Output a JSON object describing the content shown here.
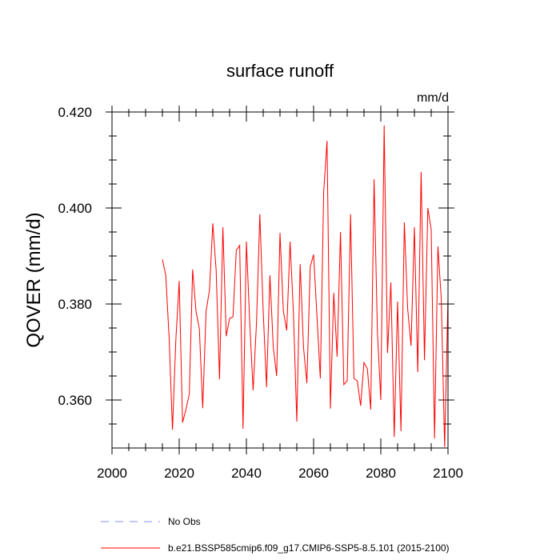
{
  "chart_data": {
    "type": "line",
    "title": "surface runoff",
    "units_label": "mm/d",
    "ylabel": "QOVER  (mm/d)",
    "xlabel": "",
    "xlim": [
      2000,
      2100
    ],
    "ylim": [
      0.35,
      0.42
    ],
    "x_ticks": [
      2000,
      2020,
      2040,
      2060,
      2080,
      2100
    ],
    "y_ticks": [
      0.36,
      0.38,
      0.4,
      0.42
    ],
    "x_tick_labels": [
      "2000",
      "2020",
      "2040",
      "2060",
      "2080",
      "2100"
    ],
    "y_tick_labels": [
      "0.360",
      "0.380",
      "0.400",
      "0.420"
    ],
    "grid": false,
    "legend_placement": "bottom",
    "series": [
      {
        "name": "No Obs",
        "style": "dashed",
        "color": "#8c8cf0",
        "x": [],
        "values": []
      },
      {
        "name": "b.e21.BSSP585cmip6.f09_g17.CMIP6-SSP5-8.5.101 (2015-2100)",
        "style": "solid",
        "color": "#ff0000",
        "x": [
          2015,
          2016,
          2017,
          2018,
          2019,
          2020,
          2021,
          2022,
          2023,
          2024,
          2025,
          2026,
          2027,
          2028,
          2029,
          2030,
          2031,
          2032,
          2033,
          2034,
          2035,
          2036,
          2037,
          2038,
          2039,
          2040,
          2041,
          2042,
          2043,
          2044,
          2045,
          2046,
          2047,
          2048,
          2049,
          2050,
          2051,
          2052,
          2053,
          2054,
          2055,
          2056,
          2057,
          2058,
          2059,
          2060,
          2061,
          2062,
          2063,
          2064,
          2065,
          2066,
          2067,
          2068,
          2069,
          2070,
          2071,
          2072,
          2073,
          2074,
          2075,
          2076,
          2077,
          2078,
          2079,
          2080,
          2081,
          2082,
          2083,
          2084,
          2085,
          2086,
          2087,
          2088,
          2089,
          2090,
          2091,
          2092,
          2093,
          2094,
          2095,
          2096,
          2097,
          2098,
          2099,
          2100
        ],
        "values": [
          0.3893,
          0.386,
          0.373,
          0.3538,
          0.3725,
          0.3848,
          0.3553,
          0.358,
          0.3612,
          0.3872,
          0.3785,
          0.3748,
          0.3583,
          0.3785,
          0.3828,
          0.3968,
          0.387,
          0.3643,
          0.396,
          0.3733,
          0.377,
          0.3773,
          0.3912,
          0.3922,
          0.354,
          0.393,
          0.376,
          0.362,
          0.376,
          0.3987,
          0.3785,
          0.3627,
          0.386,
          0.371,
          0.365,
          0.3948,
          0.3785,
          0.3745,
          0.393,
          0.378,
          0.3555,
          0.3883,
          0.371,
          0.3635,
          0.3878,
          0.3903,
          0.3775,
          0.3645,
          0.4033,
          0.414,
          0.3582,
          0.3823,
          0.369,
          0.395,
          0.3632,
          0.364,
          0.3987,
          0.3645,
          0.364,
          0.3588,
          0.3678,
          0.3665,
          0.358,
          0.406,
          0.374,
          0.36,
          0.4172,
          0.3698,
          0.3845,
          0.3523,
          0.3805,
          0.3535,
          0.397,
          0.379,
          0.3713,
          0.396,
          0.3658,
          0.4075,
          0.3683,
          0.4,
          0.3955,
          0.352,
          0.392,
          0.381,
          0.3502,
          0.3815
        ]
      }
    ]
  }
}
